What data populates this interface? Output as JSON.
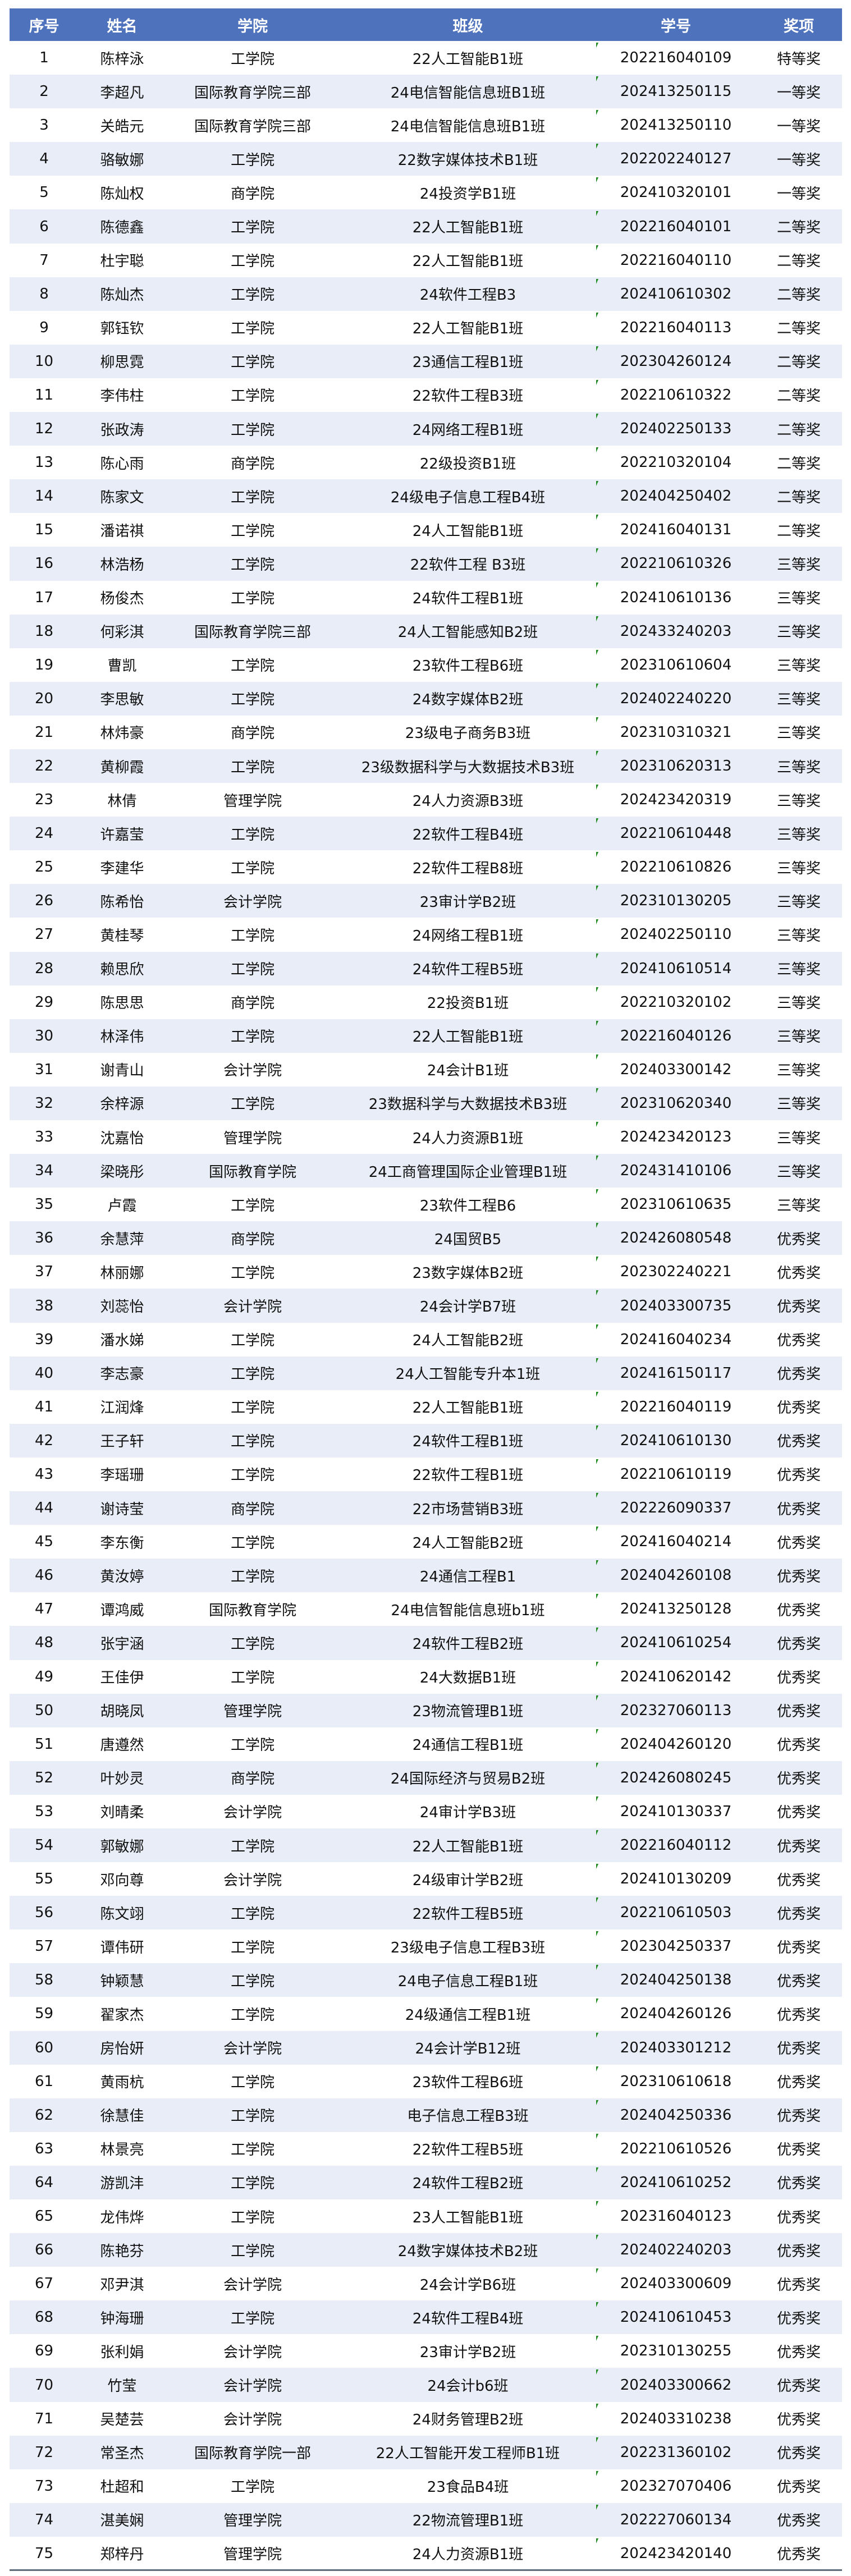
{
  "colors": {
    "header_bg": "#4f72bd",
    "stripe": "#e9edf7",
    "mark": "#1f8a1f"
  },
  "header": [
    "序号",
    "姓名",
    "学院",
    "班级",
    "学号",
    "奖项"
  ],
  "rows": [
    [
      "1",
      "陈梓泳",
      "工学院",
      "22人工智能B1班",
      "202216040109",
      "特等奖"
    ],
    [
      "2",
      "李超凡",
      "国际教育学院三部",
      "24电信智能信息班B1班",
      "202413250115",
      "一等奖"
    ],
    [
      "3",
      "关皓元",
      "国际教育学院三部",
      "24电信智能信息班B1班",
      "202413250110",
      "一等奖"
    ],
    [
      "4",
      "骆敏娜",
      "工学院",
      "22数字媒体技术B1班",
      "202202240127",
      "一等奖"
    ],
    [
      "5",
      "陈灿权",
      "商学院",
      "24投资学B1班",
      "202410320101",
      "一等奖"
    ],
    [
      "6",
      "陈德鑫",
      "工学院",
      "22人工智能B1班",
      "202216040101",
      "二等奖"
    ],
    [
      "7",
      "杜宇聪",
      "工学院",
      "22人工智能B1班",
      "202216040110",
      "二等奖"
    ],
    [
      "8",
      "陈灿杰",
      "工学院",
      "24软件工程B3",
      "202410610302",
      "二等奖"
    ],
    [
      "9",
      "郭钰钦",
      "工学院",
      "22人工智能B1班",
      "202216040113",
      "二等奖"
    ],
    [
      "10",
      "柳思霓",
      "工学院",
      "23通信工程B1班",
      "202304260124",
      "二等奖"
    ],
    [
      "11",
      "李伟柱",
      "工学院",
      "22软件工程B3班",
      "202210610322",
      "二等奖"
    ],
    [
      "12",
      "张政涛",
      "工学院",
      "24网络工程B1班",
      "202402250133",
      "二等奖"
    ],
    [
      "13",
      "陈心雨",
      "商学院",
      "22级投资B1班",
      "202210320104",
      "二等奖"
    ],
    [
      "14",
      "陈家文",
      "工学院",
      "24级电子信息工程B4班",
      "202404250402",
      "二等奖"
    ],
    [
      "15",
      "潘诺祺",
      "工学院",
      "24人工智能B1班",
      "202416040131",
      "二等奖"
    ],
    [
      "16",
      "林浩杨",
      "工学院",
      "22软件工程 B3班",
      "202210610326",
      "三等奖"
    ],
    [
      "17",
      "杨俊杰",
      "工学院",
      "24软件工程B1班",
      "202410610136",
      "三等奖"
    ],
    [
      "18",
      "何彩淇",
      "国际教育学院三部",
      "24人工智能感知B2班",
      "202433240203",
      "三等奖"
    ],
    [
      "19",
      "曹凯",
      "工学院",
      "23软件工程B6班",
      "202310610604",
      "三等奖"
    ],
    [
      "20",
      "李思敏",
      "工学院",
      "24数字媒体B2班",
      "202402240220",
      "三等奖"
    ],
    [
      "21",
      "林炜豪",
      "商学院",
      "23级电子商务B3班",
      "202310310321",
      "三等奖"
    ],
    [
      "22",
      "黄柳霞",
      "工学院",
      "23级数据科学与大数据技术B3班",
      "202310620313",
      "三等奖"
    ],
    [
      "23",
      "林倩",
      "管理学院",
      "24人力资源B3班",
      "202423420319",
      "三等奖"
    ],
    [
      "24",
      "许嘉莹",
      "工学院",
      "22软件工程B4班",
      "202210610448",
      "三等奖"
    ],
    [
      "25",
      "李建华",
      "工学院",
      "22软件工程B8班",
      "202210610826",
      "三等奖"
    ],
    [
      "26",
      "陈希怡",
      "会计学院",
      "23审计学B2班",
      "202310130205",
      "三等奖"
    ],
    [
      "27",
      "黄桂琴",
      "工学院",
      "24网络工程B1班",
      "202402250110",
      "三等奖"
    ],
    [
      "28",
      "赖思欣",
      "工学院",
      "24软件工程B5班",
      "202410610514",
      "三等奖"
    ],
    [
      "29",
      "陈思思",
      "商学院",
      "22投资B1班",
      "202210320102",
      "三等奖"
    ],
    [
      "30",
      "林泽伟",
      "工学院",
      "22人工智能B1班",
      "202216040126",
      "三等奖"
    ],
    [
      "31",
      "谢青山",
      "会计学院",
      "24会计B1班",
      "202403300142",
      "三等奖"
    ],
    [
      "32",
      "余梓源",
      "工学院",
      "23数据科学与大数据技术B3班",
      "202310620340",
      "三等奖"
    ],
    [
      "33",
      "沈嘉怡",
      "管理学院",
      "24人力资源B1班",
      "202423420123",
      "三等奖"
    ],
    [
      "34",
      "梁晓彤",
      "国际教育学院",
      "24工商管理国际企业管理B1班",
      "202431410106",
      "三等奖"
    ],
    [
      "35",
      "卢霞",
      "工学院",
      "23软件工程B6",
      "202310610635",
      "三等奖"
    ],
    [
      "36",
      "余慧萍",
      "商学院",
      "24国贸B5",
      "202426080548",
      "优秀奖"
    ],
    [
      "37",
      "林丽娜",
      "工学院",
      "23数字媒体B2班",
      "202302240221",
      "优秀奖"
    ],
    [
      "38",
      "刘蕊怡",
      "会计学院",
      "24会计学B7班",
      "202403300735",
      "优秀奖"
    ],
    [
      "39",
      "潘水娣",
      "工学院",
      "24人工智能B2班",
      "202416040234",
      "优秀奖"
    ],
    [
      "40",
      "李志豪",
      "工学院",
      "24人工智能专升本1班",
      "202416150117",
      "优秀奖"
    ],
    [
      "41",
      "江润烽",
      "工学院",
      "22人工智能B1班",
      "202216040119",
      "优秀奖"
    ],
    [
      "42",
      "王子轩",
      "工学院",
      "24软件工程B1班",
      "202410610130",
      "优秀奖"
    ],
    [
      "43",
      "李瑶珊",
      "工学院",
      "22软件工程B1班",
      "202210610119",
      "优秀奖"
    ],
    [
      "44",
      "谢诗莹",
      "商学院",
      "22市场营销B3班",
      "202226090337",
      "优秀奖"
    ],
    [
      "45",
      "李东衡",
      "工学院",
      "24人工智能B2班",
      "202416040214",
      "优秀奖"
    ],
    [
      "46",
      "黄汝婷",
      "工学院",
      "24通信工程B1",
      "202404260108",
      "优秀奖"
    ],
    [
      "47",
      "谭鸿威",
      "国际教育学院",
      "24电信智能信息班b1班",
      "202413250128",
      "优秀奖"
    ],
    [
      "48",
      "张宇涵",
      "工学院",
      "24软件工程B2班",
      "202410610254",
      "优秀奖"
    ],
    [
      "49",
      "王佳伊",
      "工学院",
      "24大数据B1班",
      "202410620142",
      "优秀奖"
    ],
    [
      "50",
      "胡晓凤",
      "管理学院",
      "23物流管理B1班",
      "202327060113",
      "优秀奖"
    ],
    [
      "51",
      "唐遵然",
      "工学院",
      "24通信工程B1班",
      "202404260120",
      "优秀奖"
    ],
    [
      "52",
      "叶妙灵",
      "商学院",
      "24国际经济与贸易B2班",
      "202426080245",
      "优秀奖"
    ],
    [
      "53",
      "刘晴柔",
      "会计学院",
      "24审计学B3班",
      "202410130337",
      "优秀奖"
    ],
    [
      "54",
      "郭敏娜",
      "工学院",
      "22人工智能B1班",
      "202216040112",
      "优秀奖"
    ],
    [
      "55",
      "邓向尊",
      "会计学院",
      "24级审计学B2班",
      "202410130209",
      "优秀奖"
    ],
    [
      "56",
      "陈文翊",
      "工学院",
      "22软件工程B5班",
      "202210610503",
      "优秀奖"
    ],
    [
      "57",
      "谭伟研",
      "工学院",
      "23级电子信息工程B3班",
      "202304250337",
      "优秀奖"
    ],
    [
      "58",
      "钟颖慧",
      "工学院",
      "24电子信息工程B1班",
      "202404250138",
      "优秀奖"
    ],
    [
      "59",
      "翟家杰",
      "工学院",
      "24级通信工程B1班",
      "202404260126",
      "优秀奖"
    ],
    [
      "60",
      "房怡妍",
      "会计学院",
      "24会计学B12班",
      "202403301212",
      "优秀奖"
    ],
    [
      "61",
      "黄雨杭",
      "工学院",
      "23软件工程B6班",
      "202310610618",
      "优秀奖"
    ],
    [
      "62",
      "徐慧佳",
      "工学院",
      "电子信息工程B3班",
      "202404250336",
      "优秀奖"
    ],
    [
      "63",
      "林景亮",
      "工学院",
      "22软件工程B5班",
      "202210610526",
      "优秀奖"
    ],
    [
      "64",
      "游凯沣",
      "工学院",
      "24软件工程B2班",
      "202410610252",
      "优秀奖"
    ],
    [
      "65",
      "龙伟烨",
      "工学院",
      "23人工智能B1班",
      "202316040123",
      "优秀奖"
    ],
    [
      "66",
      "陈艳芬",
      "工学院",
      "24数字媒体技术B2班",
      "202402240203",
      "优秀奖"
    ],
    [
      "67",
      "邓尹淇",
      "会计学院",
      "24会计学B6班",
      "202403300609",
      "优秀奖"
    ],
    [
      "68",
      "钟海珊",
      "工学院",
      "24软件工程B4班",
      "202410610453",
      "优秀奖"
    ],
    [
      "69",
      "张利娟",
      "会计学院",
      "23审计学B2班",
      "202310130255",
      "优秀奖"
    ],
    [
      "70",
      "竹莹",
      "会计学院",
      "24会计b6班",
      "202403300662",
      "优秀奖"
    ],
    [
      "71",
      "吴楚芸",
      "会计学院",
      "24财务管理B2班",
      "202403310238",
      "优秀奖"
    ],
    [
      "72",
      "常圣杰",
      "国际教育学院一部",
      "22人工智能开发工程师B1班",
      "202231360102",
      "优秀奖"
    ],
    [
      "73",
      "杜超和",
      "工学院",
      "23食品B4班",
      "202327070406",
      "优秀奖"
    ],
    [
      "74",
      "湛美娴",
      "管理学院",
      "22物流管理B1班",
      "202227060134",
      "优秀奖"
    ],
    [
      "75",
      "郑梓丹",
      "管理学院",
      "24人力资源B1班",
      "202423420140",
      "优秀奖"
    ]
  ]
}
